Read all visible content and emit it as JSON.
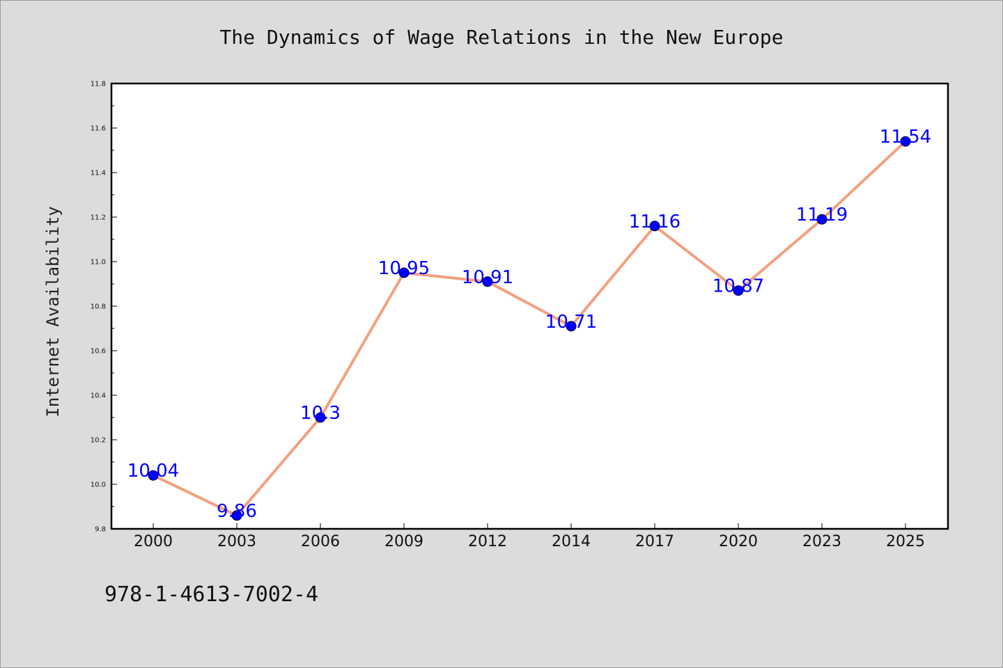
{
  "chart_data": {
    "type": "line",
    "title": "The Dynamics of Wage Relations in the New Europe",
    "xlabel": "",
    "ylabel": "Internet Availability",
    "categories": [
      "2000",
      "2003",
      "2006",
      "2009",
      "2012",
      "2014",
      "2017",
      "2020",
      "2023",
      "2025"
    ],
    "series": [
      {
        "values": [
          10.04,
          9.86,
          10.3,
          10.95,
          10.91,
          10.71,
          11.16,
          10.87,
          11.19,
          11.54
        ],
        "data_labels": [
          "10.04",
          "9.86",
          "10.3",
          "10.95",
          "10.91",
          "10.71",
          "11.16",
          "10.87",
          "11.19",
          "11.54"
        ]
      }
    ],
    "ylim": [
      9.8,
      11.8
    ],
    "yticks": [
      "9.8",
      "10.0",
      "10.2",
      "10.4",
      "10.6",
      "10.8",
      "11.0",
      "11.2",
      "11.4",
      "11.6",
      "11.8"
    ],
    "grid": false,
    "legend": "none",
    "colors": {
      "line": "#f4a07e",
      "marker": "#0000ff",
      "data_label": "#0000ff",
      "plot_background": "#ffffff",
      "figure_background": "#dcdcdc"
    }
  },
  "footer": {
    "isbn": "978-1-4613-7002-4"
  }
}
